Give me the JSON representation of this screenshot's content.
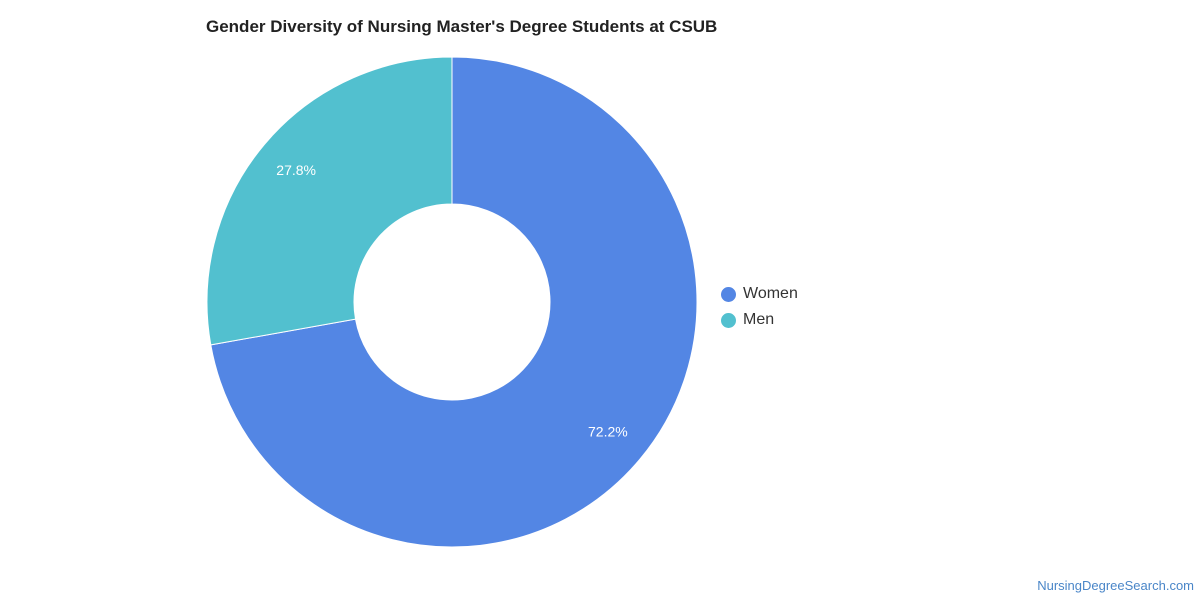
{
  "chart_data": {
    "type": "pie",
    "title": "Gender Diversity of Nursing Master's Degree Students at CSUB",
    "categories": [
      "Women",
      "Men"
    ],
    "values": [
      72.2,
      27.8
    ],
    "data_labels": [
      "72.2%",
      "27.8%"
    ],
    "colors": [
      "#5386e4",
      "#52c0cf"
    ],
    "donut": true,
    "legend_position": "right"
  },
  "watermark": "NursingDegreeSearch.com"
}
